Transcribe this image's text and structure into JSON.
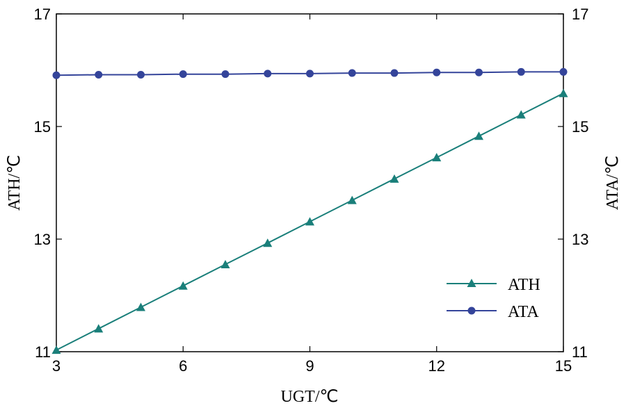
{
  "chart_data": {
    "type": "line",
    "title": "",
    "xlabel": "UGT/℃",
    "ylabel": "ATH/℃",
    "y2label": "ATA/℃",
    "xlim": [
      3,
      15
    ],
    "ylim": [
      11,
      17
    ],
    "y2lim": [
      11,
      17
    ],
    "x_ticks": [
      3,
      6,
      9,
      12,
      15
    ],
    "y_ticks": [
      11,
      13,
      15,
      17
    ],
    "y2_ticks": [
      11,
      13,
      15,
      17
    ],
    "grid": false,
    "legend_position": "lower-right",
    "x": [
      3,
      4,
      5,
      6,
      7,
      8,
      9,
      10,
      11,
      12,
      13,
      14,
      15
    ],
    "series": [
      {
        "name": "ATH",
        "axis": "left",
        "marker": "triangle",
        "color": "#1a7f7a",
        "values": [
          11.03,
          11.41,
          11.79,
          12.17,
          12.55,
          12.93,
          13.31,
          13.69,
          14.07,
          14.45,
          14.83,
          15.21,
          15.59
        ]
      },
      {
        "name": "ATA",
        "axis": "right",
        "marker": "circle",
        "color": "#34449a",
        "values": [
          15.91,
          15.92,
          15.92,
          15.93,
          15.93,
          15.94,
          15.94,
          15.95,
          15.95,
          15.96,
          15.96,
          15.97,
          15.97
        ]
      }
    ]
  }
}
